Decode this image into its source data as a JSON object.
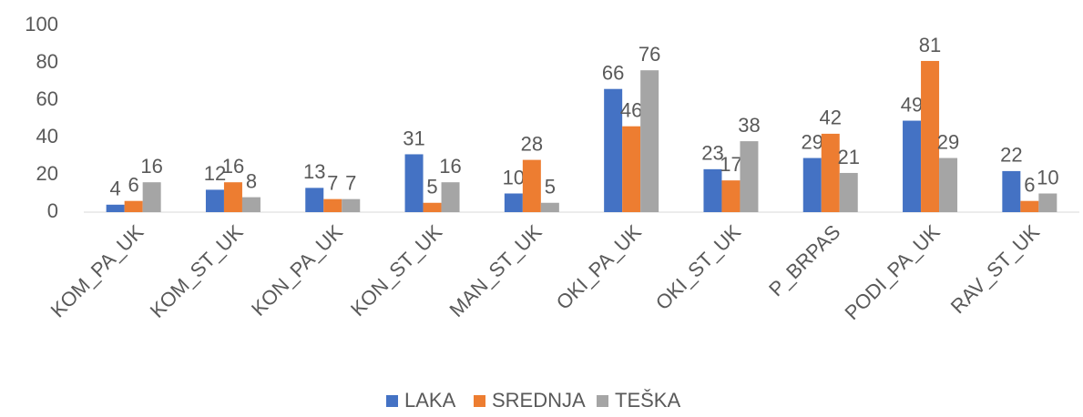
{
  "chart_data": {
    "type": "bar",
    "categories": [
      "KOM_PA_UK",
      "KOM_ST_UK",
      "KON_PA_UK",
      "KON_ST_UK",
      "MAN_ST_UK",
      "OKI_PA_UK",
      "OKI_ST_UK",
      "P_BRPAS",
      "PODI_PA_UK",
      "RAV_ST_UK"
    ],
    "series": [
      {
        "name": "LAKA",
        "color": "#4472c4",
        "values": [
          4,
          12,
          13,
          31,
          10,
          66,
          23,
          29,
          49,
          22
        ]
      },
      {
        "name": "SREDNJA",
        "color": "#ed7d31",
        "values": [
          6,
          16,
          7,
          5,
          28,
          46,
          17,
          42,
          81,
          6
        ]
      },
      {
        "name": "TEŠKA",
        "color": "#a5a5a5",
        "values": [
          16,
          8,
          7,
          16,
          5,
          76,
          38,
          21,
          29,
          10
        ]
      }
    ],
    "ylim": [
      0,
      100
    ],
    "yticks": [
      0,
      20,
      40,
      60,
      80,
      100
    ],
    "grid": false,
    "legend": "bottom"
  }
}
